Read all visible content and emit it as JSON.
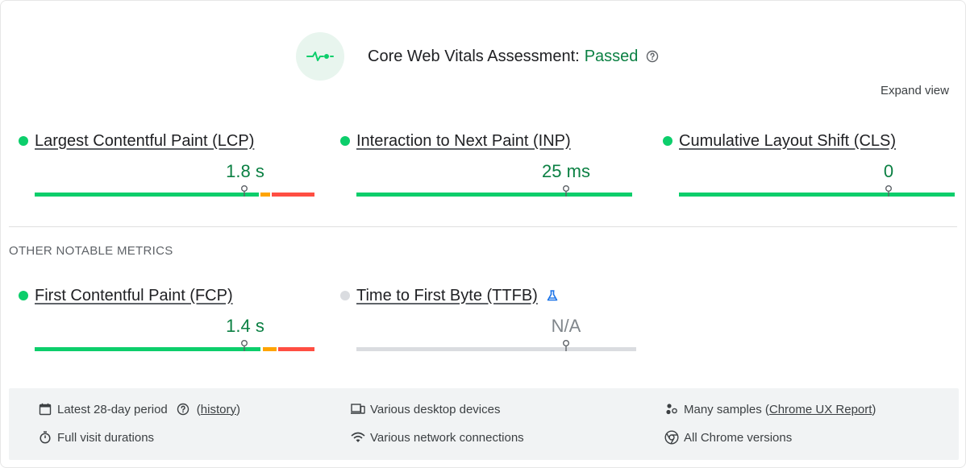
{
  "header": {
    "title": "Core Web Vitals Assessment:",
    "status": "Passed",
    "expand_label": "Expand view"
  },
  "metrics": [
    {
      "label": "Largest Contentful Paint (LCP)",
      "value": "1.8 s",
      "status": "good",
      "marker_fraction": 0.75
    },
    {
      "label": "Interaction to Next Paint (INP)",
      "value": "25 ms",
      "status": "good",
      "marker_fraction": 0.75
    },
    {
      "label": "Cumulative Layout Shift (CLS)",
      "value": "0",
      "status": "good",
      "marker_fraction": 0.75
    }
  ],
  "other_metrics": {
    "section_label": "OTHER NOTABLE METRICS",
    "items": [
      {
        "label": "First Contentful Paint (FCP)",
        "value": "1.4 s",
        "status": "good",
        "marker_fraction": 0.75
      },
      {
        "label": "Time to First Byte (TTFB)",
        "value": "N/A",
        "status": "none",
        "marker_fraction": 0.75,
        "icon": "experimental-flask-icon"
      }
    ]
  },
  "footer": {
    "period": "Latest 28-day period",
    "history_link": "history",
    "full_visit": "Full visit durations",
    "devices": "Various desktop devices",
    "network": "Various network connections",
    "samples_prefix": "Many samples (",
    "samples_link": "Chrome UX Report",
    "samples_suffix": ")",
    "chrome_versions": "All Chrome versions"
  },
  "colors": {
    "good": "#0cce6b",
    "good_text": "#0b8043",
    "needs_improvement": "#ffa400",
    "poor": "#ff4e42",
    "no_data": "#dadce0",
    "flask": "#1a73e8"
  }
}
